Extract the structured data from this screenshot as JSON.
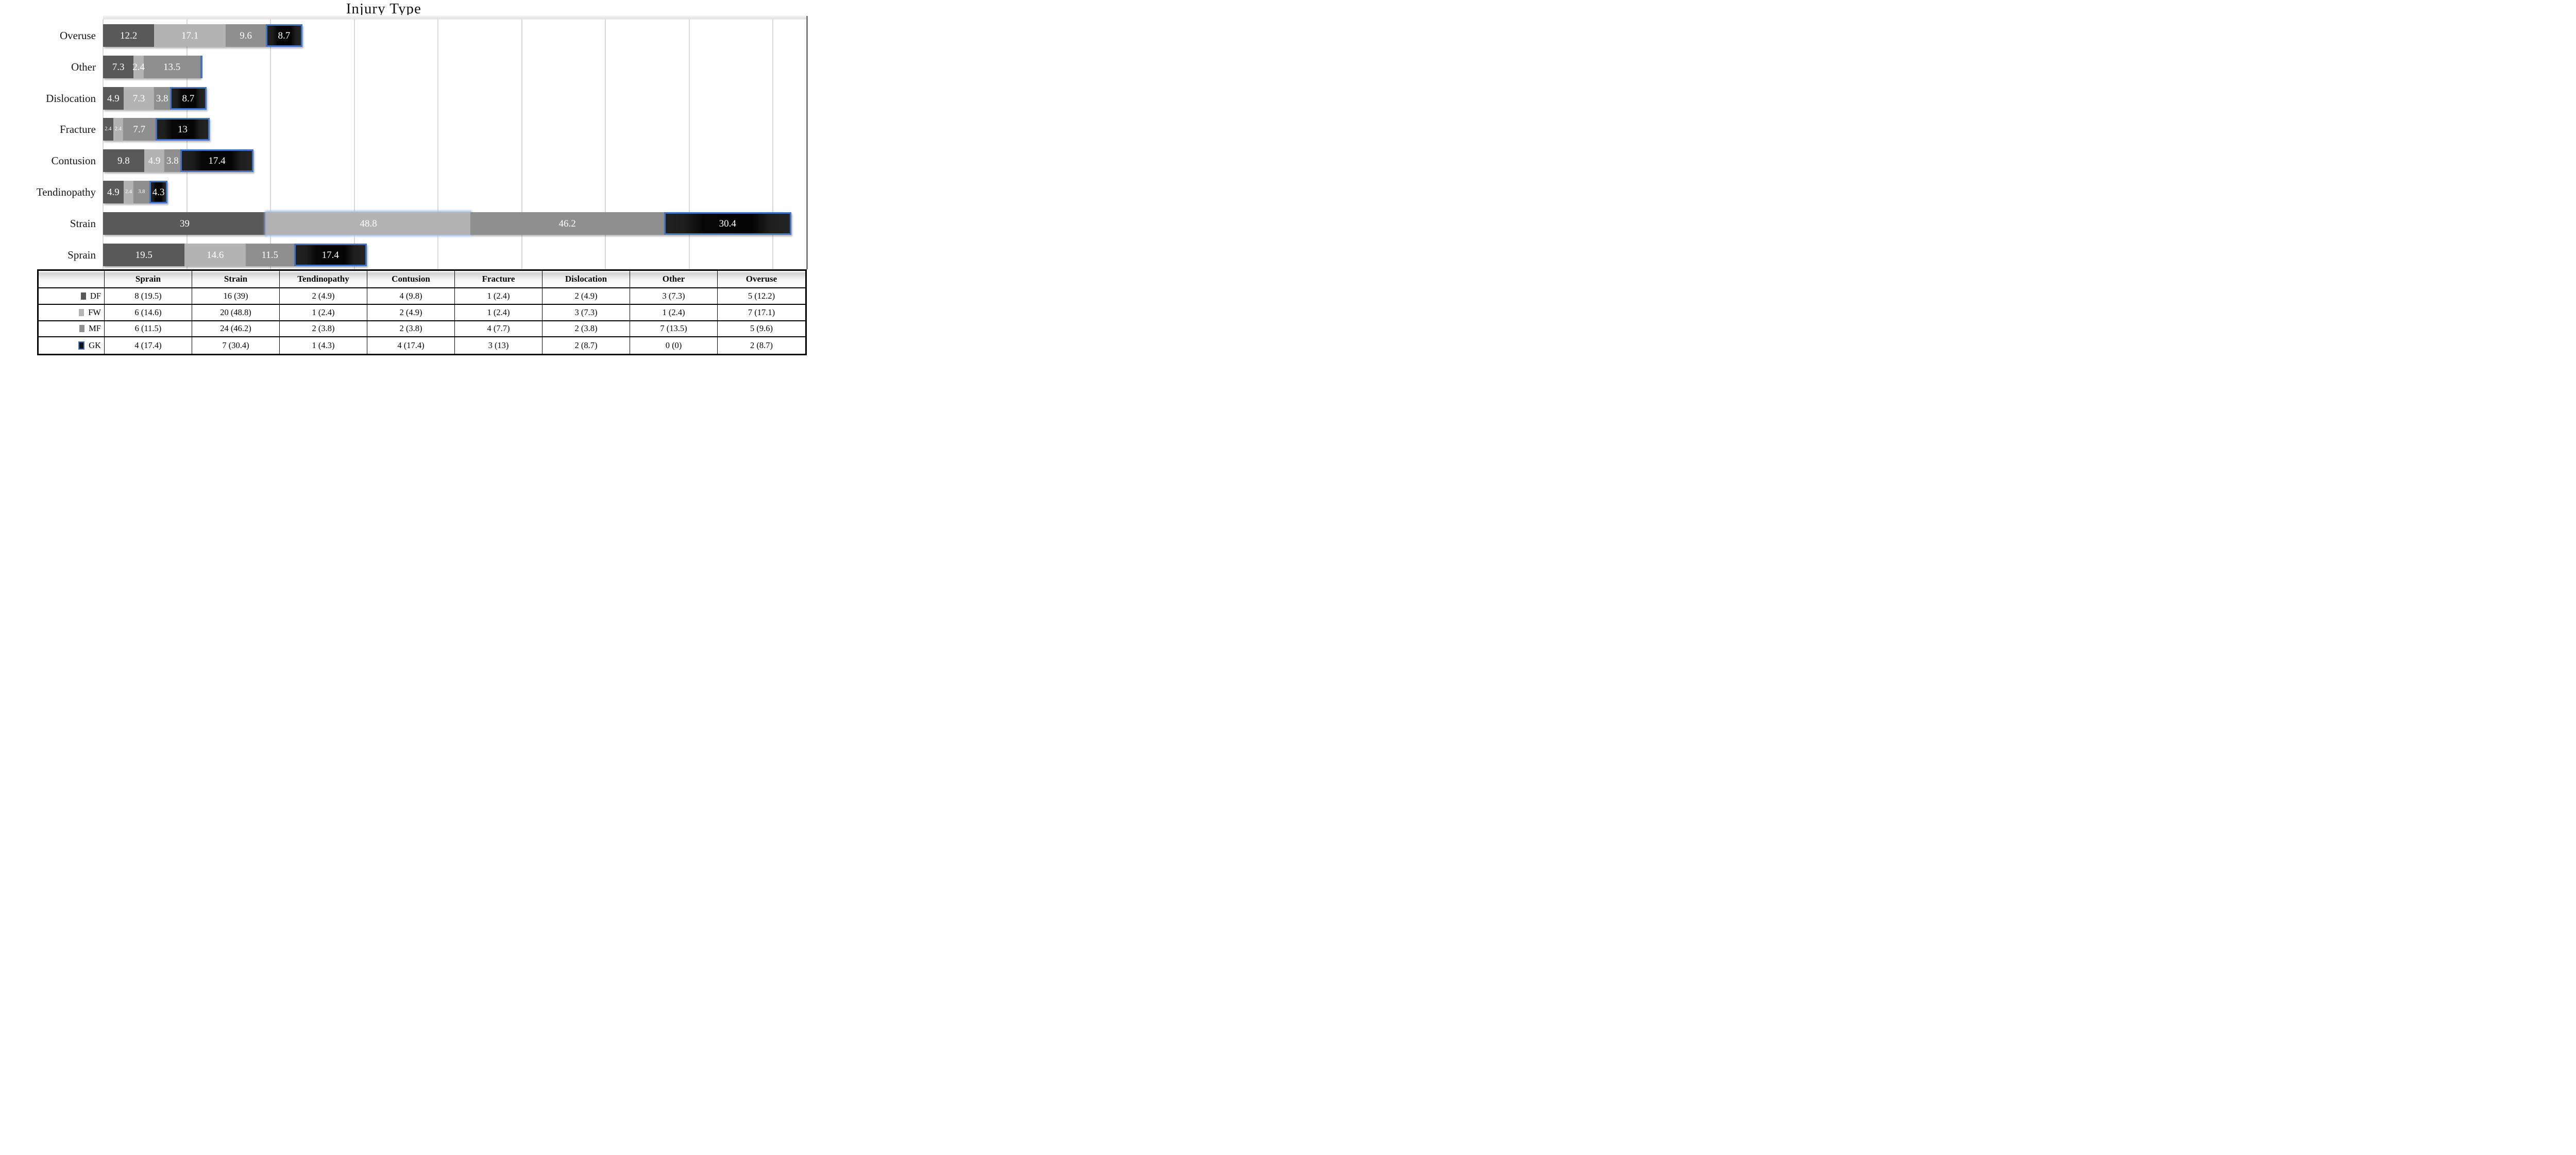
{
  "title": "Injury Type",
  "palette": {
    "DF": "#595959",
    "FW": "#b3b3b3",
    "MF": "#8f8f8f",
    "GK_fill": "#0a0a0a",
    "GK_border": "#4472c4",
    "gridline": "#d9d9d9",
    "bar_label_text": "#ffffff"
  },
  "chart_data": {
    "type": "bar",
    "orientation": "horizontal",
    "stacked": true,
    "title": "Injury Type",
    "x_axis": {
      "min": 0,
      "max": 165,
      "gridline_step": 20,
      "tick_labels_shown": false,
      "grid": true
    },
    "values_unit": "percent (% of each position's injuries)",
    "series_order": [
      "DF",
      "FW",
      "MF",
      "GK"
    ],
    "legend_position": "table-first-column",
    "rows_top_to_bottom": [
      {
        "category": "Overuse",
        "segments": [
          {
            "series": "DF",
            "percent": 12.2,
            "label": "12.2",
            "small": false
          },
          {
            "series": "FW",
            "percent": 17.1,
            "label": "17.1",
            "small": false
          },
          {
            "series": "MF",
            "percent": 9.6,
            "label": "9.6",
            "small": false
          },
          {
            "series": "GK",
            "percent": 8.7,
            "label": "8.7",
            "small": false
          }
        ]
      },
      {
        "category": "Other",
        "segments": [
          {
            "series": "DF",
            "percent": 7.3,
            "label": "7.3",
            "small": false
          },
          {
            "series": "FW",
            "percent": 2.4,
            "label": "2.4",
            "small": false
          },
          {
            "series": "MF",
            "percent": 13.5,
            "label": "13.5",
            "small": false
          },
          {
            "series": "GK",
            "percent": 0,
            "label": "",
            "small": false
          }
        ]
      },
      {
        "category": "Dislocation",
        "segments": [
          {
            "series": "DF",
            "percent": 4.9,
            "label": "4.9",
            "small": false
          },
          {
            "series": "FW",
            "percent": 7.3,
            "label": "7.3",
            "small": false
          },
          {
            "series": "MF",
            "percent": 3.8,
            "label": "3.8",
            "small": false
          },
          {
            "series": "GK",
            "percent": 8.7,
            "label": "8.7",
            "small": false
          }
        ]
      },
      {
        "category": "Fracture",
        "segments": [
          {
            "series": "DF",
            "percent": 2.4,
            "label": "2.4",
            "small": true
          },
          {
            "series": "FW",
            "percent": 2.4,
            "label": "2.4",
            "small": true
          },
          {
            "series": "MF",
            "percent": 7.7,
            "label": "7.7",
            "small": false
          },
          {
            "series": "GK",
            "percent": 13,
            "label": "13",
            "small": false
          }
        ]
      },
      {
        "category": "Contusion",
        "segments": [
          {
            "series": "DF",
            "percent": 9.8,
            "label": "9.8",
            "small": false
          },
          {
            "series": "FW",
            "percent": 4.9,
            "label": "4.9",
            "small": false
          },
          {
            "series": "MF",
            "percent": 3.8,
            "label": "3.8",
            "small": false
          },
          {
            "series": "GK",
            "percent": 17.4,
            "label": "17.4",
            "small": false
          }
        ]
      },
      {
        "category": "Tendinopathy",
        "segments": [
          {
            "series": "DF",
            "percent": 4.9,
            "label": "4.9",
            "small": false
          },
          {
            "series": "FW",
            "percent": 2.4,
            "label": "2.4",
            "small": true
          },
          {
            "series": "MF",
            "percent": 3.8,
            "label": "3.8",
            "small": true
          },
          {
            "series": "GK",
            "percent": 4.3,
            "label": "4.3",
            "small": false
          }
        ]
      },
      {
        "category": "Strain",
        "segments": [
          {
            "series": "DF",
            "percent": 39,
            "label": "39",
            "small": false
          },
          {
            "series": "FW",
            "percent": 48.8,
            "label": "48.8",
            "small": false,
            "highlighted": true
          },
          {
            "series": "MF",
            "percent": 46.2,
            "label": "46.2",
            "small": false
          },
          {
            "series": "GK",
            "percent": 30.4,
            "label": "30.4",
            "small": false
          }
        ]
      },
      {
        "category": "Sprain",
        "segments": [
          {
            "series": "DF",
            "percent": 19.5,
            "label": "19.5",
            "small": false
          },
          {
            "series": "FW",
            "percent": 14.6,
            "label": "14.6",
            "small": false
          },
          {
            "series": "MF",
            "percent": 11.5,
            "label": "11.5",
            "small": false
          },
          {
            "series": "GK",
            "percent": 17.4,
            "label": "17.4",
            "small": false
          }
        ]
      }
    ]
  },
  "table": {
    "header": [
      "",
      "Sprain",
      "Strain",
      "Tendinopathy",
      "Contusion",
      "Fracture",
      "Dislocation",
      "Other",
      "Overuse"
    ],
    "rows": [
      {
        "series": "DF",
        "cells": [
          "8 (19.5)",
          "16 (39)",
          "2 (4.9)",
          "4 (9.8)",
          "1 (2.4)",
          "2 (4.9)",
          "3 (7.3)",
          "5 (12.2)"
        ]
      },
      {
        "series": "FW",
        "cells": [
          "6 (14.6)",
          "20 (48.8)",
          "1 (2.4)",
          "2 (4.9)",
          "1 (2.4)",
          "3 (7.3)",
          "1 (2.4)",
          "7 (17.1)"
        ]
      },
      {
        "series": "MF",
        "cells": [
          "6 (11.5)",
          "24 (46.2)",
          "2 (3.8)",
          "2 (3.8)",
          "4 (7.7)",
          "2 (3.8)",
          "7 (13.5)",
          "5 (9.6)"
        ]
      },
      {
        "series": "GK",
        "cells": [
          "4 (17.4)",
          "7 (30.4)",
          "1 (4.3)",
          "4 (17.4)",
          "3 (13)",
          "2 (8.7)",
          "0 (0)",
          "2 (8.7)"
        ]
      }
    ]
  }
}
